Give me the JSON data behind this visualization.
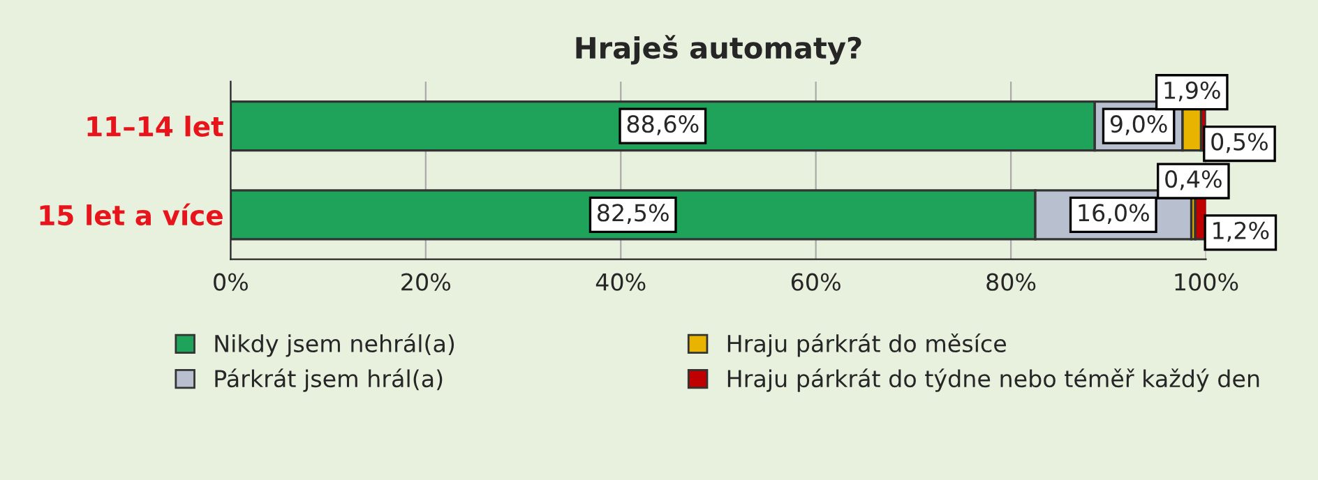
{
  "chart_data": {
    "type": "bar",
    "orientation": "horizontal",
    "stacked": true,
    "title": "Hraješ automaty?",
    "categories": [
      "11–14 let",
      "15 let a více"
    ],
    "series": [
      {
        "name": "Nikdy jsem nehrál(a)",
        "color": "#1fa35a",
        "values": [
          88.6,
          82.5
        ],
        "value_labels": [
          "88,6%",
          "82,5%"
        ]
      },
      {
        "name": "Párkrát jsem hrál(a)",
        "color": "#b8c0d0",
        "values": [
          9.0,
          16.0
        ],
        "value_labels": [
          "9,0%",
          "16,0%"
        ]
      },
      {
        "name": "Hraju párkrát do měsíce",
        "color": "#e8b400",
        "values": [
          1.9,
          0.4
        ],
        "value_labels": [
          "1,9%",
          "0,4%"
        ]
      },
      {
        "name": "Hraju párkrát do týdne nebo téměř každý den",
        "color": "#c00000",
        "values": [
          0.5,
          1.2
        ],
        "value_labels": [
          "0,5%",
          "1,2%"
        ]
      }
    ],
    "xlim": [
      0,
      100
    ],
    "xticks": [
      {
        "value": 0,
        "label": "0%"
      },
      {
        "value": 20,
        "label": "20%"
      },
      {
        "value": 40,
        "label": "40%"
      },
      {
        "value": 60,
        "label": "60%"
      },
      {
        "value": 80,
        "label": "80%"
      },
      {
        "value": 100,
        "label": "100%"
      }
    ],
    "grid": "x",
    "legend": "bottom"
  }
}
